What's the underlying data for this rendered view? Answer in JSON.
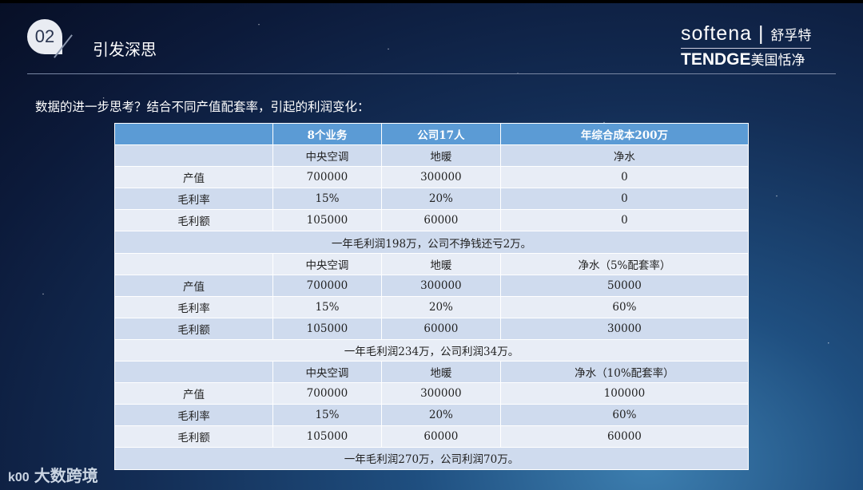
{
  "header": {
    "number": "02",
    "title": "引发深思"
  },
  "logo": {
    "brand1": "softena",
    "brand1_cn": "舒孚特",
    "brand2": "TENDGE",
    "brand2_cn": "美国恬净"
  },
  "intro": "数据的进一步思考？结合不同产值配套率，引起的利润变化：",
  "table": {
    "headers": [
      "",
      "8个业务",
      "公司17人",
      "年综合成本200万"
    ],
    "sections": [
      {
        "products": [
          "中央空调",
          "地暖",
          "净水"
        ],
        "rows": [
          [
            "产值",
            "700000",
            "300000",
            "0"
          ],
          [
            "毛利率",
            "15%",
            "20%",
            "0"
          ],
          [
            "毛利额",
            "105000",
            "60000",
            "0"
          ]
        ],
        "summary": "一年毛利润198万，公司不挣钱还亏2万。"
      },
      {
        "products": [
          "中央空调",
          "地暖",
          "净水（5%配套率）"
        ],
        "rows": [
          [
            "产值",
            "700000",
            "300000",
            "50000"
          ],
          [
            "毛利率",
            "15%",
            "20%",
            "60%"
          ],
          [
            "毛利额",
            "105000",
            "60000",
            "30000"
          ]
        ],
        "summary": "一年毛利润234万，公司利润34万。"
      },
      {
        "products": [
          "中央空调",
          "地暖",
          "净水（10%配套率）"
        ],
        "rows": [
          [
            "产值",
            "700000",
            "300000",
            "100000"
          ],
          [
            "毛利率",
            "15%",
            "20%",
            "60%"
          ],
          [
            "毛利额",
            "105000",
            "60000",
            "60000"
          ]
        ],
        "summary": "一年毛利润270万，公司利润70万。"
      }
    ]
  },
  "watermark": {
    "mark": "k00",
    "text": "大数跨境"
  }
}
